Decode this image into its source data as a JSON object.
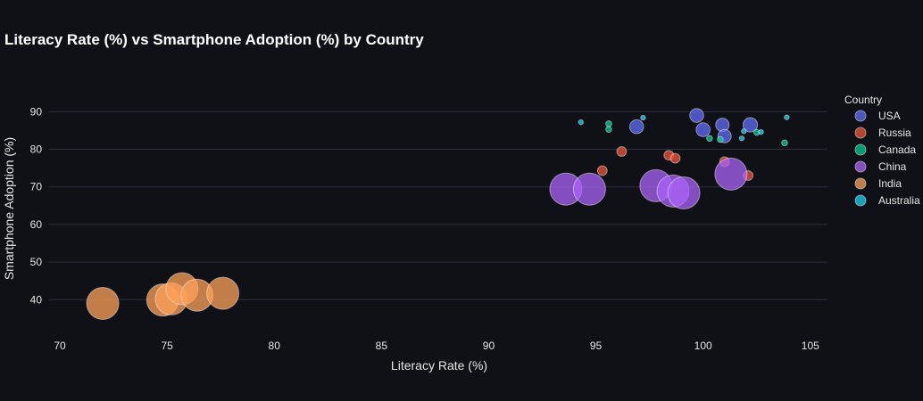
{
  "chart_data": {
    "type": "scatter",
    "title": "Literacy Rate (%) vs Smartphone Adoption (%) by Country",
    "xlabel": "Literacy Rate (%)",
    "ylabel": "Smartphone Adoption (%)",
    "xlim": [
      69.5,
      105.8
    ],
    "ylim": [
      32,
      96
    ],
    "xticks": [
      70,
      75,
      80,
      85,
      90,
      95,
      100,
      105
    ],
    "yticks": [
      40,
      50,
      60,
      70,
      80,
      90
    ],
    "grid": true,
    "legend_position": "right",
    "legend_title": "Country",
    "series": [
      {
        "name": "USA",
        "color": "#636efa",
        "points": [
          {
            "x": 96.9,
            "y": 86.0,
            "size": 1.3
          },
          {
            "x": 99.7,
            "y": 89.0,
            "size": 1.3
          },
          {
            "x": 100.0,
            "y": 85.2,
            "size": 1.3
          },
          {
            "x": 100.9,
            "y": 86.5,
            "size": 1.25
          },
          {
            "x": 101.0,
            "y": 83.5,
            "size": 1.25
          },
          {
            "x": 102.2,
            "y": 86.5,
            "size": 1.35
          }
        ]
      },
      {
        "name": "Russia",
        "color": "#ef553b",
        "points": [
          {
            "x": 95.3,
            "y": 74.3,
            "size": 0.9
          },
          {
            "x": 96.2,
            "y": 79.4,
            "size": 0.9
          },
          {
            "x": 98.4,
            "y": 78.4,
            "size": 0.9
          },
          {
            "x": 98.7,
            "y": 77.6,
            "size": 0.9
          },
          {
            "x": 101.0,
            "y": 76.7,
            "size": 0.9
          },
          {
            "x": 102.1,
            "y": 73.0,
            "size": 0.9
          }
        ]
      },
      {
        "name": "Canada",
        "color": "#00cc96",
        "points": [
          {
            "x": 95.6,
            "y": 86.8,
            "size": 0.55
          },
          {
            "x": 95.6,
            "y": 85.3,
            "size": 0.55
          },
          {
            "x": 100.3,
            "y": 82.9,
            "size": 0.55
          },
          {
            "x": 100.8,
            "y": 82.6,
            "size": 0.55
          },
          {
            "x": 102.5,
            "y": 84.5,
            "size": 0.55
          },
          {
            "x": 103.8,
            "y": 81.7,
            "size": 0.55
          }
        ]
      },
      {
        "name": "China",
        "color": "#ab63fa",
        "points": [
          {
            "x": 93.6,
            "y": 69.4,
            "size": 3.0
          },
          {
            "x": 94.7,
            "y": 69.4,
            "size": 3.0
          },
          {
            "x": 97.8,
            "y": 70.3,
            "size": 3.0
          },
          {
            "x": 98.6,
            "y": 68.9,
            "size": 3.0
          },
          {
            "x": 99.1,
            "y": 68.4,
            "size": 3.0
          },
          {
            "x": 101.3,
            "y": 73.4,
            "size": 3.0
          }
        ]
      },
      {
        "name": "India",
        "color": "#ffa15a",
        "points": [
          {
            "x": 72.0,
            "y": 39.0,
            "size": 3.0
          },
          {
            "x": 74.8,
            "y": 39.9,
            "size": 3.0
          },
          {
            "x": 75.2,
            "y": 40.2,
            "size": 3.0
          },
          {
            "x": 75.7,
            "y": 42.9,
            "size": 3.0
          },
          {
            "x": 76.4,
            "y": 41.2,
            "size": 3.0
          },
          {
            "x": 77.6,
            "y": 41.7,
            "size": 3.0
          }
        ]
      },
      {
        "name": "Australia",
        "color": "#19d3f3",
        "points": [
          {
            "x": 94.3,
            "y": 87.2,
            "size": 0.45
          },
          {
            "x": 97.2,
            "y": 88.4,
            "size": 0.45
          },
          {
            "x": 101.9,
            "y": 84.8,
            "size": 0.45
          },
          {
            "x": 101.8,
            "y": 82.9,
            "size": 0.45
          },
          {
            "x": 102.7,
            "y": 84.6,
            "size": 0.45
          },
          {
            "x": 103.9,
            "y": 88.5,
            "size": 0.45
          }
        ]
      }
    ]
  }
}
